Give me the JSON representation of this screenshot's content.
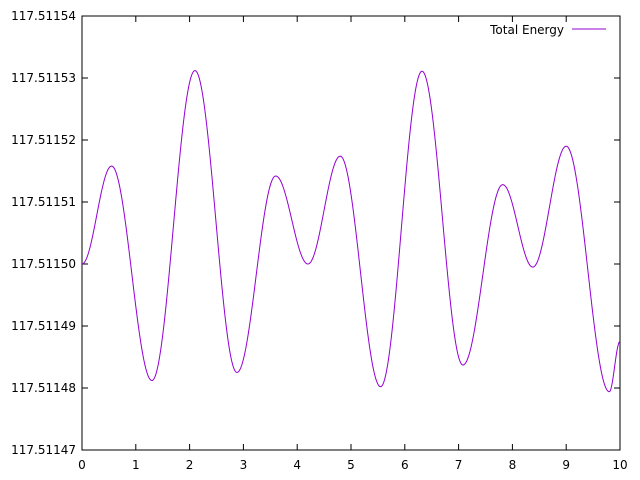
{
  "chart_data": {
    "type": "line",
    "title": "",
    "xlabel": "",
    "ylabel": "",
    "xlim": [
      0,
      10
    ],
    "ylim": [
      117.51147,
      117.51154
    ],
    "x_ticks": [
      0,
      1,
      2,
      3,
      4,
      5,
      6,
      7,
      8,
      9,
      10
    ],
    "x_tick_labels": [
      "0",
      "1",
      "2",
      "3",
      "4",
      "5",
      "6",
      "7",
      "8",
      "9",
      "10"
    ],
    "y_ticks": [
      117.51147,
      117.51148,
      117.51149,
      117.5115,
      117.51151,
      117.51152,
      117.51153,
      117.51154
    ],
    "y_tick_labels": [
      "117.51147",
      "117.51148",
      "117.51149",
      "117.51150",
      "117.51151",
      "117.51152",
      "117.51153",
      "117.51154"
    ],
    "grid": false,
    "legend_position": "top-right",
    "series": [
      {
        "name": "Total Energy",
        "color": "#9400d3",
        "x": [
          0,
          0.55,
          1.3,
          2.1,
          2.88,
          3.6,
          4.2,
          4.8,
          5.55,
          6.32,
          7.08,
          7.82,
          8.38,
          9.0,
          9.8,
          10
        ],
        "y": [
          117.5115,
          117.5115158,
          117.5114812,
          117.5115312,
          117.5114825,
          117.5115142,
          117.5115,
          117.5115174,
          117.5114802,
          117.5115311,
          117.5114837,
          117.5115128,
          117.5114995,
          117.511519,
          117.5114794,
          117.5114875
        ]
      }
    ]
  }
}
